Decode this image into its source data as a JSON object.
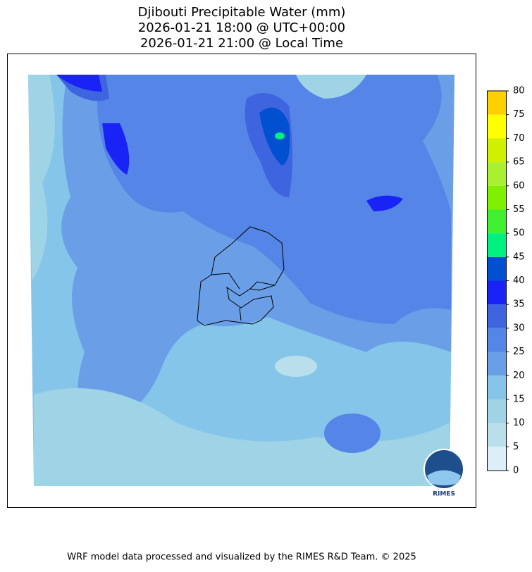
{
  "title": [
    "Djibouti Precipitable Water (mm)",
    "2026-01-21 18:00 @ UTC+00:00",
    "2026-01-21 21:00 @ Local Time"
  ],
  "colorbar": {
    "ticks": [
      0,
      5,
      10,
      15,
      20,
      25,
      30,
      35,
      40,
      45,
      50,
      55,
      60,
      65,
      70,
      75,
      80
    ],
    "colors": [
      "#dceef7",
      "#b9dfea",
      "#9fd3e6",
      "#86c5ea",
      "#6a9fe8",
      "#5585e6",
      "#3e64e0",
      "#1923f5",
      "#0050d0",
      "#00f080",
      "#40f030",
      "#80f000",
      "#a8f030",
      "#d0f000",
      "#ffff00",
      "#ffd000"
    ]
  },
  "logo": "RIMES",
  "footer": "WRF model data processed and visualized by the RIMES R&D Team. © 2025"
}
